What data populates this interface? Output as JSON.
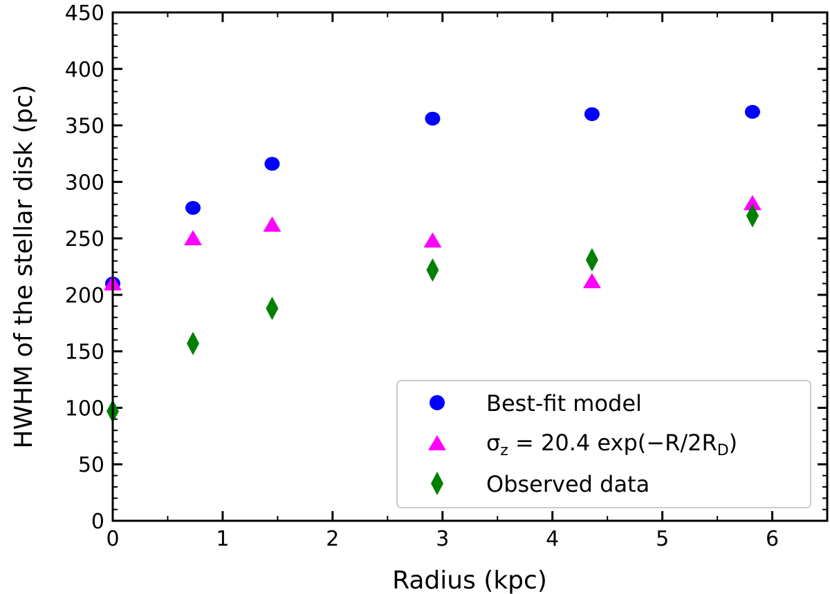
{
  "chart_data": {
    "type": "scatter",
    "xlabel": "Radius (kpc)",
    "ylabel": "HWHM of the stellar disk (pc)",
    "xlim": [
      0,
      6.5
    ],
    "ylim": [
      0,
      450
    ],
    "xticks": [
      0,
      1,
      2,
      3,
      4,
      5,
      6
    ],
    "yticks": [
      0,
      50,
      100,
      150,
      200,
      250,
      300,
      350,
      400,
      450
    ],
    "grid": false,
    "legend_position": "bottom-right",
    "series": [
      {
        "name": "Best-fit model",
        "legend_label": "Best-fit model",
        "marker": "circle",
        "color": "#0000ff",
        "x": [
          0.0,
          0.73,
          1.45,
          2.91,
          4.36,
          5.82
        ],
        "y": [
          210,
          277,
          316,
          356,
          360,
          362
        ]
      },
      {
        "name": "sigma_z model",
        "legend_label": "σz = 20.4 exp(−R/2RD)",
        "legend_parts": [
          "σ",
          "z",
          " = 20.4 exp(−R/2R",
          "D",
          ")"
        ],
        "marker": "triangle",
        "color": "#ff00ff",
        "x": [
          0.0,
          0.73,
          1.45,
          2.91,
          4.36,
          5.82
        ],
        "y": [
          210,
          250,
          262,
          248,
          212,
          281
        ]
      },
      {
        "name": "Observed data",
        "legend_label": "Observed data",
        "marker": "diamond",
        "color": "#008000",
        "x": [
          0.0,
          0.73,
          1.45,
          2.91,
          4.36,
          5.82
        ],
        "y": [
          97,
          157,
          188,
          222,
          231,
          270
        ]
      }
    ]
  }
}
